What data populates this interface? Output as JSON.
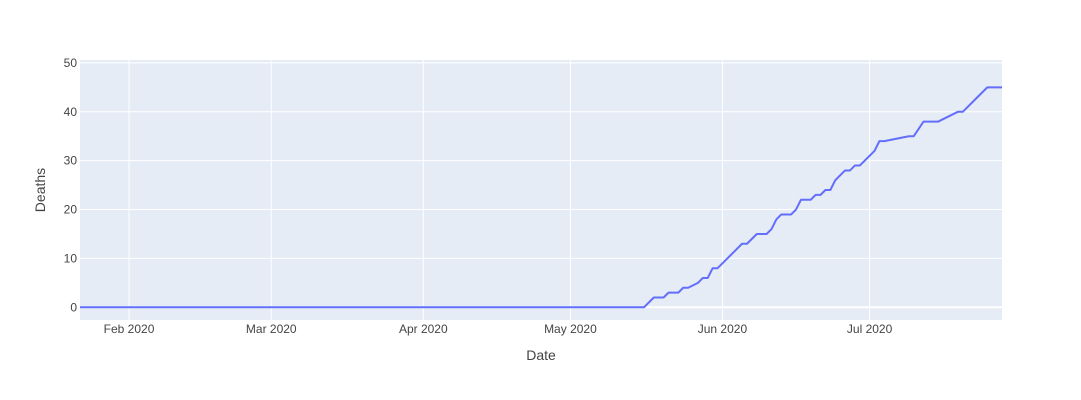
{
  "chart_data": {
    "type": "line",
    "title": "",
    "xlabel": "Date",
    "ylabel": "Deaths",
    "xlim": [
      "2020-01-22",
      "2020-07-28"
    ],
    "ylim": [
      -2.6,
      50.6
    ],
    "x_ticks": [
      {
        "date": "2020-02-01",
        "label": "Feb 2020"
      },
      {
        "date": "2020-03-01",
        "label": "Mar 2020"
      },
      {
        "date": "2020-04-01",
        "label": "Apr 2020"
      },
      {
        "date": "2020-05-01",
        "label": "May 2020"
      },
      {
        "date": "2020-06-01",
        "label": "Jun 2020"
      },
      {
        "date": "2020-07-01",
        "label": "Jul 2020"
      }
    ],
    "y_ticks": [
      0,
      10,
      20,
      30,
      40,
      50
    ],
    "grid": true,
    "colors": {
      "line": "#636efa",
      "plot_bg": "#e5ecf6",
      "grid": "#ffffff",
      "text": "#444444"
    },
    "series": [
      {
        "x": [
          "2020-01-22",
          "2020-05-16",
          "2020-05-18",
          "2020-05-20",
          "2020-05-21",
          "2020-05-23",
          "2020-05-24",
          "2020-05-25",
          "2020-05-27",
          "2020-05-28",
          "2020-05-29",
          "2020-05-30",
          "2020-05-31",
          "2020-06-02",
          "2020-06-03",
          "2020-06-05",
          "2020-06-06",
          "2020-06-07",
          "2020-06-08",
          "2020-06-09",
          "2020-06-10",
          "2020-06-11",
          "2020-06-12",
          "2020-06-13",
          "2020-06-14",
          "2020-06-15",
          "2020-06-16",
          "2020-06-17",
          "2020-06-18",
          "2020-06-19",
          "2020-06-20",
          "2020-06-21",
          "2020-06-22",
          "2020-06-23",
          "2020-06-24",
          "2020-06-25",
          "2020-06-26",
          "2020-06-27",
          "2020-06-28",
          "2020-06-29",
          "2020-06-30",
          "2020-07-01",
          "2020-07-02",
          "2020-07-03",
          "2020-07-04",
          "2020-07-09",
          "2020-07-10",
          "2020-07-12",
          "2020-07-13",
          "2020-07-14",
          "2020-07-15",
          "2020-07-19",
          "2020-07-20",
          "2020-07-23",
          "2020-07-24",
          "2020-07-25",
          "2020-07-28"
        ],
        "y": [
          0,
          0,
          2,
          2,
          3,
          3,
          4,
          4,
          5,
          6,
          6,
          8,
          8,
          10,
          11,
          13,
          13,
          14,
          15,
          15,
          15,
          16,
          18,
          19,
          19,
          19,
          20,
          22,
          22,
          22,
          23,
          23,
          24,
          24,
          26,
          27,
          28,
          28,
          29,
          29,
          30,
          31,
          32,
          34,
          34,
          35,
          35,
          38,
          38,
          38,
          38,
          40,
          40,
          43,
          44,
          45,
          45
        ]
      }
    ]
  }
}
